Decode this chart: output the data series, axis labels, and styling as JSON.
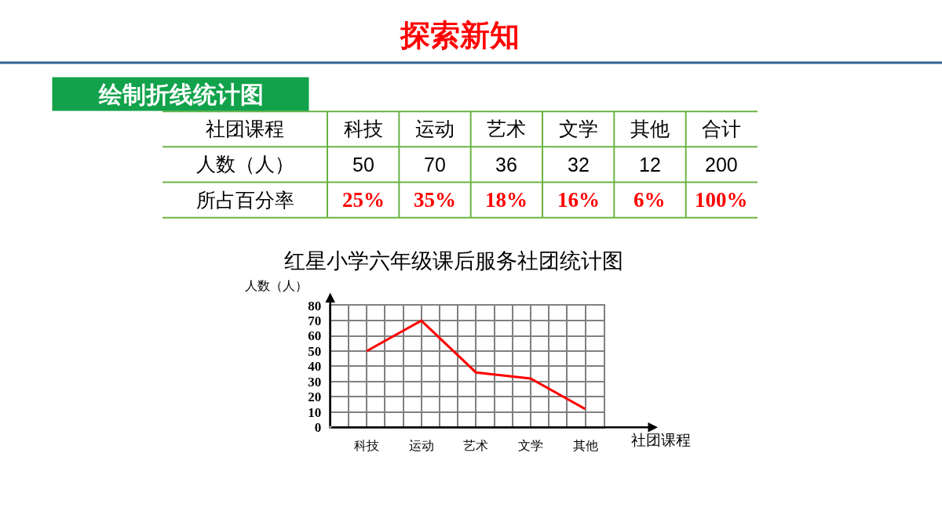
{
  "chart_data": [
    {
      "type": "other",
      "title": "探索新知",
      "subtitle": "绘制折线统计图",
      "xlabel": "社团课程",
      "categories": [
        "科技",
        "运动",
        "艺术",
        "文学",
        "其他",
        "合计"
      ],
      "data_labels": true,
      "series": [
        {
          "name": "人数（人）",
          "values": [
            50,
            70,
            36,
            32,
            12,
            200
          ]
        },
        {
          "name": "所占百分率",
          "values": [
            25,
            35,
            18,
            16,
            6,
            100
          ],
          "value_labels": [
            "25%",
            "35%",
            "18%",
            "16%",
            "6%",
            "100%"
          ]
        }
      ]
    },
    {
      "type": "line",
      "title": "红星小学六年级课后服务社团统计图",
      "xlabel": "社团课程",
      "ylabel": "人数（人）",
      "categories": [
        "科技",
        "运动",
        "艺术",
        "文学",
        "其他"
      ],
      "series": [
        {
          "color": "#ff0000",
          "values": [
            50,
            70,
            36,
            32,
            12
          ]
        }
      ],
      "ylim": [
        0,
        80
      ],
      "yticks": [
        0,
        10,
        20,
        30,
        40,
        50,
        60,
        70,
        80
      ],
      "grid": true,
      "line_style": "solid"
    }
  ]
}
